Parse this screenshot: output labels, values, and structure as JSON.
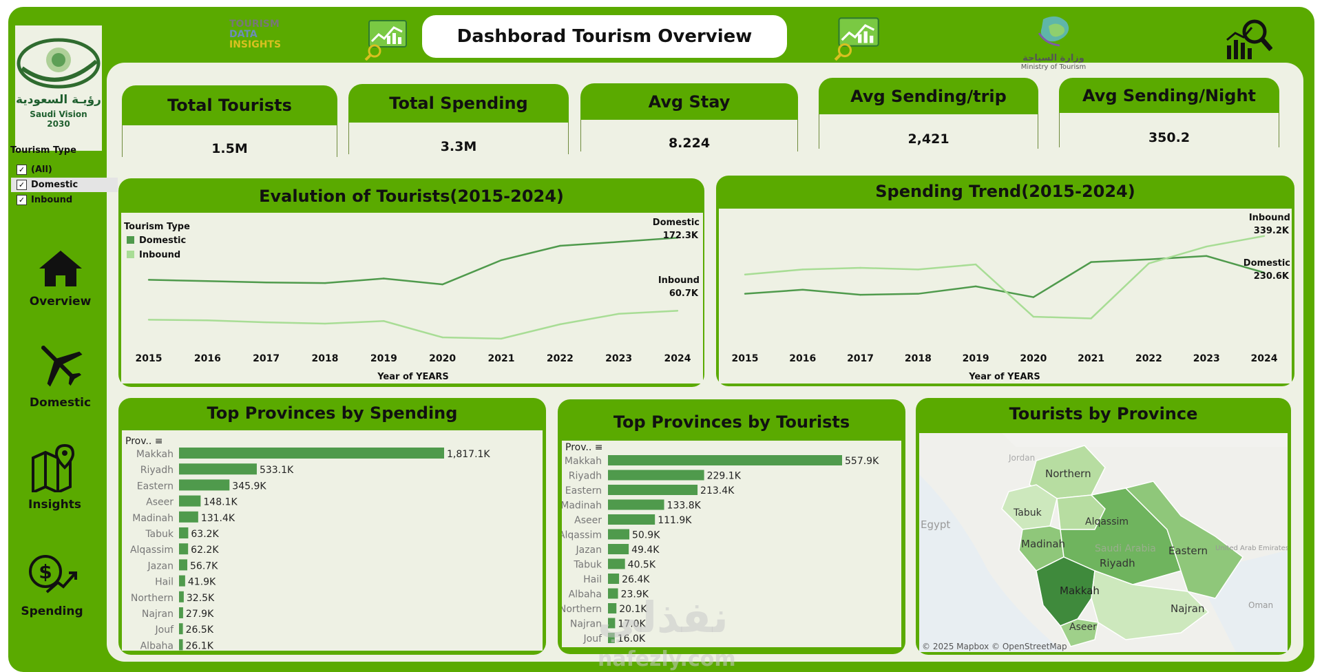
{
  "logo": {
    "line1": "رؤيـة السعودية",
    "line2": "Saudi Vision",
    "line3": "2030"
  },
  "brand": {
    "line1": "TOURISM",
    "line2": "DATA",
    "line3": "INSIGHTS"
  },
  "ministry": {
    "arabic": "وزارة السياحة",
    "english": "Ministry of Tourism"
  },
  "title": "Dashborad Tourism Overview",
  "filter": {
    "title": "Tourism Type",
    "items": [
      {
        "label": "(All)",
        "checked": "✓"
      },
      {
        "label": "Domestic",
        "checked": "✓"
      },
      {
        "label": "Inbound",
        "checked": "✓"
      }
    ]
  },
  "nav": {
    "overview": "Overview",
    "domestic": "Domestic",
    "insights": "Insights",
    "spending": "Spending"
  },
  "kpis": [
    {
      "label": "Total Tourists",
      "value": "1.5M"
    },
    {
      "label": "Total Spending",
      "value": "3.3M"
    },
    {
      "label": "Avg Stay",
      "value": "8.224"
    },
    {
      "label": "Avg Sending/trip",
      "value": "2,421"
    },
    {
      "label": "Avg Sending/Night",
      "value": "350.2"
    }
  ],
  "chart_data": [
    {
      "type": "line",
      "title": "Evalution of Tourists(2015-2024)",
      "xlabel": "Year of YEARS",
      "legend_title": "Tourism Type",
      "legend_position": "top-left",
      "x": [
        2015,
        2016,
        2017,
        2018,
        2019,
        2020,
        2021,
        2022,
        2023,
        2024
      ],
      "ylim": [
        0,
        200
      ],
      "series": [
        {
          "name": "Domestic",
          "color": "#4f9a4c",
          "values": [
            108,
            106,
            104,
            103,
            110,
            101,
            138,
            160,
            166,
            172.3
          ],
          "end_label": "172.3K"
        },
        {
          "name": "Inbound",
          "color": "#a8dd95",
          "values": [
            47,
            46,
            43,
            41,
            45,
            20,
            18,
            40,
            56,
            60.7
          ],
          "end_label": "60.7K"
        }
      ]
    },
    {
      "type": "line",
      "title": "Spending Trend(2015-2024)",
      "xlabel": "Year of YEARS",
      "x": [
        2015,
        2016,
        2017,
        2018,
        2019,
        2020,
        2021,
        2022,
        2023,
        2024
      ],
      "ylim": [
        0,
        400
      ],
      "series": [
        {
          "name": "Domestic",
          "color": "#4f9a4c",
          "values": [
            168,
            180,
            165,
            168,
            190,
            158,
            262,
            270,
            280,
            230.6
          ],
          "end_label": "230.6K"
        },
        {
          "name": "Inbound",
          "color": "#a8dd95",
          "values": [
            225,
            240,
            245,
            240,
            255,
            100,
            95,
            258,
            308,
            339.2
          ],
          "end_label": "339.2K"
        }
      ]
    },
    {
      "type": "bar",
      "title": "Top Provinces by Spending",
      "header": "Prov..",
      "categories": [
        "Makkah",
        "Riyadh",
        "Eastern",
        "Aseer",
        "Madinah",
        "Tabuk",
        "Alqassim",
        "Jazan",
        "Hail",
        "Northern",
        "Najran",
        "Jouf",
        "Albaha"
      ],
      "values": [
        1817.1,
        533.1,
        345.9,
        148.1,
        131.4,
        63.2,
        62.2,
        56.7,
        41.9,
        32.5,
        27.9,
        26.5,
        26.1
      ],
      "labels": [
        "1,817.1K",
        "533.1K",
        "345.9K",
        "148.1K",
        "131.4K",
        "63.2K",
        "62.2K",
        "56.7K",
        "41.9K",
        "32.5K",
        "27.9K",
        "26.5K",
        "26.1K"
      ],
      "color": "#4f9a4c"
    },
    {
      "type": "bar",
      "title": "Top Provinces by Tourists",
      "header": "Prov..",
      "categories": [
        "Makkah",
        "Riyadh",
        "Eastern",
        "Madinah",
        "Aseer",
        "Alqassim",
        "Jazan",
        "Tabuk",
        "Hail",
        "Albaha",
        "Northern",
        "Najran",
        "Jouf"
      ],
      "values": [
        557.9,
        229.1,
        213.4,
        133.8,
        111.9,
        50.9,
        49.4,
        40.5,
        26.4,
        23.9,
        20.1,
        17.0,
        16.0
      ],
      "labels": [
        "557.9K",
        "229.1K",
        "213.4K",
        "133.8K",
        "111.9K",
        "50.9K",
        "49.4K",
        "40.5K",
        "26.4K",
        "23.9K",
        "20.1K",
        "17.0K",
        "16.0K"
      ],
      "color": "#4f9a4c"
    }
  ],
  "map": {
    "title": "Tourists by Province",
    "labels": [
      "Jordan",
      "Northern",
      "Tabuk",
      "Alqassim",
      "Egypt",
      "Madinah",
      "Saudi Arabia",
      "Riyadh",
      "Eastern",
      "United Arab Emirates",
      "Makkah",
      "Najran",
      "Aseer",
      "Oman"
    ],
    "attribution": "© 2025 Mapbox © OpenStreetMap"
  },
  "watermark": {
    "arabic": "نفذلي",
    "latin": "nafezly.com"
  }
}
